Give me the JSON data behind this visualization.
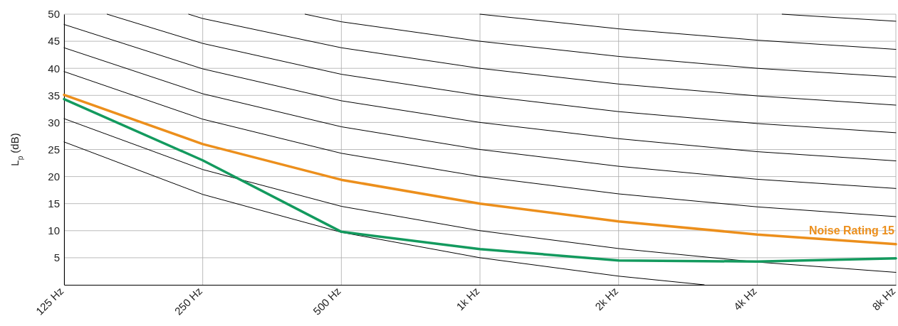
{
  "chart_data": {
    "type": "line",
    "ylabel": "L$_{p}$ (dB)",
    "log": "x",
    "xlim": [
      125,
      8000
    ],
    "xticks": [
      {
        "value": 125,
        "label": "125 Hz"
      },
      {
        "value": 250,
        "label": "250 Hz"
      },
      {
        "value": 500,
        "label": "500 Hz"
      },
      {
        "value": 1000,
        "label": "1k Hz"
      },
      {
        "value": 2000,
        "label": "2k Hz"
      },
      {
        "value": 4000,
        "label": "4k Hz"
      },
      {
        "value": 8000,
        "label": "8k Hz"
      }
    ],
    "ylim": [
      0,
      50
    ],
    "yticks": [
      5,
      10,
      15,
      20,
      25,
      30,
      35,
      40,
      45,
      50
    ],
    "grid": true,
    "marker": "none",
    "line_style": "solid",
    "legend": false,
    "series": [
      {
        "color": "#000000",
        "x": [
          125,
          250,
          500,
          1000,
          2000,
          3069
        ],
        "values": [
          26.4,
          16.7,
          9.7,
          5,
          1.6,
          0
        ]
      },
      {
        "color": "#000000",
        "x": [
          125,
          250,
          500,
          1000,
          2000,
          4000,
          8000
        ],
        "values": [
          30.7,
          21.3,
          14.5,
          10,
          6.7,
          4.2,
          2.3
        ]
      },
      {
        "color": "#000000",
        "x": [
          125,
          250,
          500,
          1000,
          2000,
          4000,
          8000
        ],
        "values": [
          39.4,
          30.6,
          24.3,
          20,
          16.8,
          14.4,
          12.6
        ]
      },
      {
        "color": "#000000",
        "x": [
          125,
          250,
          500,
          1000,
          2000,
          4000,
          8000
        ],
        "values": [
          43.8,
          35.3,
          29.2,
          25,
          21.9,
          19.5,
          17.8
        ]
      },
      {
        "color": "#000000",
        "x": [
          125,
          250,
          500,
          1000,
          2000,
          4000,
          8000
        ],
        "values": [
          48.1,
          39.9,
          34,
          30,
          27,
          24.6,
          22.9
        ]
      },
      {
        "color": "#000000",
        "x": [
          155,
          250,
          500,
          1000,
          2000,
          4000,
          8000
        ],
        "values": [
          50,
          44.6,
          38.9,
          35,
          32,
          29.8,
          28.1
        ]
      },
      {
        "color": "#000000",
        "x": [
          233,
          250,
          500,
          1000,
          2000,
          4000,
          8000
        ],
        "values": [
          50,
          49.2,
          43.8,
          40,
          37.1,
          34.9,
          33.2
        ]
      },
      {
        "color": "#000000",
        "x": [
          417,
          500,
          1000,
          2000,
          4000,
          8000
        ],
        "values": [
          50,
          48.6,
          45,
          42.2,
          40,
          38.4
        ]
      },
      {
        "color": "#000000",
        "x": [
          1000,
          2000,
          4000,
          8000
        ],
        "values": [
          50,
          47.3,
          45.2,
          43.5
        ]
      },
      {
        "color": "#000000",
        "x": [
          4530,
          8000
        ],
        "values": [
          50,
          48.7
        ]
      },
      {
        "name": "Noise Rating 15",
        "color": "#ec8f1c",
        "x": [
          125,
          250,
          500,
          1000,
          2000,
          4000,
          8000
        ],
        "values": [
          35.1,
          26,
          19.4,
          15,
          11.7,
          9.3,
          7.5
        ]
      },
      {
        "color": "#139a5e",
        "x": [
          125,
          250,
          500,
          1000,
          2000,
          4000,
          8000
        ],
        "values": [
          34.3,
          23,
          9.8,
          6.6,
          4.5,
          4.3,
          4.9
        ]
      }
    ]
  }
}
